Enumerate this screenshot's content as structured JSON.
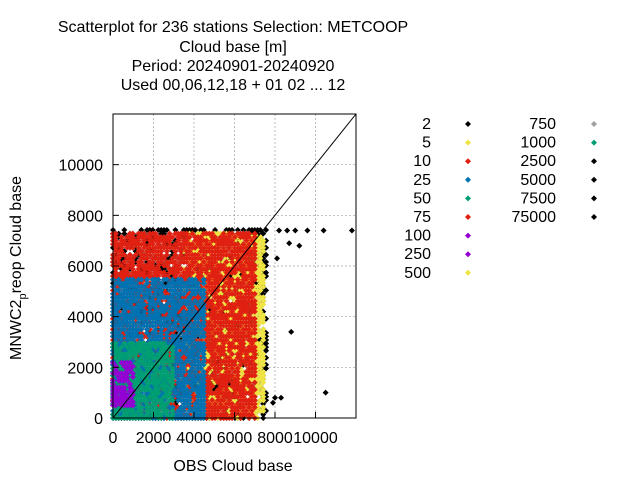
{
  "chart_data": {
    "type": "scatter",
    "title_lines": [
      "Scatterplot for  236 stations Selection: METCOOP",
      "Cloud base [m]",
      "Period: 20240901-20240920",
      "Used  00,06,12,18 + 01 02 ... 12"
    ],
    "xlabel": "OBS Cloud base",
    "ylabel_main": "MNWC2",
    "ylabel_sub": "p",
    "ylabel_rest": "reop Cloud base",
    "xlim": [
      0,
      12000
    ],
    "ylim": [
      0,
      12000
    ],
    "x_ticks": [
      0,
      2000,
      4000,
      6000,
      8000,
      10000
    ],
    "y_ticks": [
      0,
      2000,
      4000,
      6000,
      8000,
      10000
    ],
    "x_tick_labels": [
      "0",
      "2000",
      "4000",
      "6000",
      "8000",
      "10000"
    ],
    "y_tick_labels": [
      "0",
      "2000",
      "4000",
      "6000",
      "8000",
      "10000"
    ],
    "grid": true,
    "diagonal": [
      [
        0,
        0
      ],
      [
        12000,
        12000
      ]
    ],
    "legend": [
      {
        "label": "2",
        "color": "#000000"
      },
      {
        "label": "5",
        "color": "#f0e442"
      },
      {
        "label": "10",
        "color": "#e02010"
      },
      {
        "label": "25",
        "color": "#0072b2"
      },
      {
        "label": "50",
        "color": "#009e73"
      },
      {
        "label": "75",
        "color": "#e02010"
      },
      {
        "label": "100",
        "color": "#9400d3"
      },
      {
        "label": "250",
        "color": "#9400d3"
      },
      {
        "label": "500",
        "color": "#f0e442"
      },
      {
        "label": "750",
        "color": "#a0a0a0"
      },
      {
        "label": "1000",
        "color": "#009e73"
      },
      {
        "label": "2500",
        "color": "#000000"
      },
      {
        "label": "5000",
        "color": "#000000"
      },
      {
        "label": "7500",
        "color": "#000000"
      },
      {
        "label": "75000",
        "color": "#000000"
      }
    ],
    "regions": [
      {
        "count_class": "2",
        "color": "#000000",
        "x_range": [
          0,
          7600
        ],
        "y_range": [
          0,
          7500
        ]
      },
      {
        "count_class": "500",
        "color": "#f0e442",
        "x_range": [
          3500,
          7500
        ],
        "y_range": [
          0,
          7400
        ]
      },
      {
        "count_class": "75",
        "color": "#e02010",
        "x_range": [
          0,
          7000
        ],
        "y_range": [
          0,
          7400
        ]
      },
      {
        "count_class": "25",
        "color": "#0072b2",
        "x_range": [
          0,
          4500
        ],
        "y_range": [
          0,
          5500
        ]
      },
      {
        "count_class": "1000",
        "color": "#009e73",
        "x_range": [
          0,
          3000
        ],
        "y_range": [
          0,
          3000
        ]
      },
      {
        "count_class": "250",
        "color": "#9400d3",
        "x_range": [
          0,
          1000
        ],
        "y_range": [
          500,
          2200
        ]
      }
    ],
    "outliers": [
      {
        "x": 8200,
        "y": 7400
      },
      {
        "x": 8600,
        "y": 7400
      },
      {
        "x": 9000,
        "y": 7400
      },
      {
        "x": 9600,
        "y": 7400
      },
      {
        "x": 10400,
        "y": 7400
      },
      {
        "x": 11800,
        "y": 7400
      },
      {
        "x": 8700,
        "y": 6900
      },
      {
        "x": 9200,
        "y": 6800
      },
      {
        "x": 8100,
        "y": 6300
      },
      {
        "x": 8800,
        "y": 3400
      },
      {
        "x": 10500,
        "y": 1000
      },
      {
        "x": 8000,
        "y": 800
      },
      {
        "x": 7900,
        "y": 600
      },
      {
        "x": 8300,
        "y": 800
      }
    ]
  }
}
